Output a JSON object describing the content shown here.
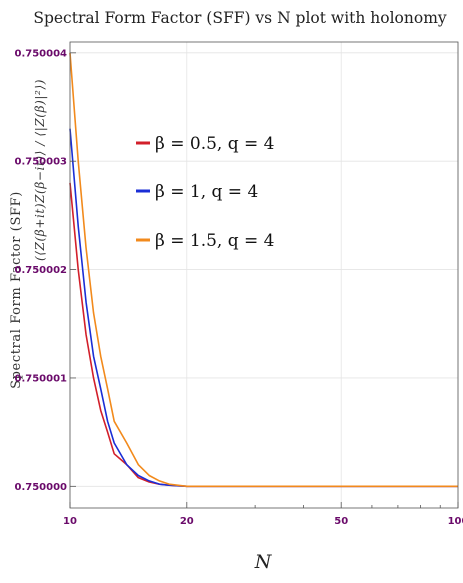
{
  "chart_data": {
    "type": "line",
    "title": "Spectral Form Factor (SFF) vs N plot with holonomy",
    "xlabel": "N",
    "ylabel": "Spectral Form Factor (SFF)",
    "ylabel_formula": "(⟨Z(β+it)Z(β−it)⟩ / ⟨|Z(β)|²⟩)",
    "x_scale": "log",
    "xlim": [
      10,
      100
    ],
    "ylim": [
      0.7499998,
      0.7500041
    ],
    "x_ticks": [
      10,
      20,
      50,
      100
    ],
    "x_tick_labels": [
      "10",
      "20",
      "50",
      "100"
    ],
    "y_ticks": [
      0.75,
      0.750001,
      0.750002,
      0.750003,
      0.750004
    ],
    "y_tick_labels": [
      "0.750000",
      "0.750001",
      "0.750002",
      "0.750003",
      "0.750004"
    ],
    "grid": true,
    "legend_position": "upper-left",
    "series": [
      {
        "name": "β = 0.5, q = 4",
        "color": "#d21f2a",
        "x": [
          10,
          10.5,
          11,
          11.5,
          12,
          12.5,
          13,
          14,
          15,
          16,
          17,
          18,
          20,
          25,
          30,
          40,
          50,
          70,
          100
        ],
        "y": [
          0.7500028,
          0.750002,
          0.7500014,
          0.750001,
          0.7500007,
          0.7500005,
          0.7500003,
          0.7500002,
          0.75000008,
          0.75000004,
          0.75000002,
          0.75000001,
          0.75,
          0.75,
          0.75,
          0.75,
          0.75,
          0.75,
          0.75
        ]
      },
      {
        "name": "β = 1, q = 4",
        "color": "#1a2ed6",
        "x": [
          10,
          10.5,
          11,
          11.5,
          12,
          12.5,
          13,
          14,
          15,
          16,
          17,
          18,
          20,
          25,
          30,
          40,
          50,
          70,
          100
        ],
        "y": [
          0.7500033,
          0.7500024,
          0.7500017,
          0.7500012,
          0.7500009,
          0.7500006,
          0.7500004,
          0.7500002,
          0.7500001,
          0.75000005,
          0.75000002,
          0.75000001,
          0.75,
          0.75,
          0.75,
          0.75,
          0.75,
          0.75,
          0.75
        ]
      },
      {
        "name": "β = 1.5, q = 4",
        "color": "#f28a1c",
        "x": [
          10,
          10.5,
          11,
          11.5,
          12,
          12.5,
          13,
          14,
          15,
          16,
          17,
          18,
          20,
          25,
          30,
          40,
          50,
          70,
          100
        ],
        "y": [
          0.750004,
          0.750003,
          0.7500022,
          0.7500016,
          0.7500012,
          0.7500009,
          0.7500006,
          0.7500004,
          0.7500002,
          0.7500001,
          0.75000005,
          0.75000002,
          0.75,
          0.75,
          0.75,
          0.75,
          0.75,
          0.75,
          0.75
        ]
      }
    ]
  }
}
